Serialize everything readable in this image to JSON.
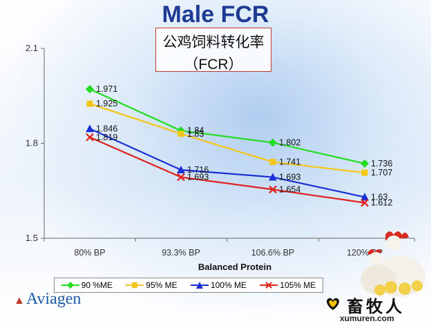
{
  "title": "Male FCR",
  "subtitle_line1": "公鸡饲料转化率",
  "subtitle_line2": "（FCR）",
  "logo_text": "Aviagen",
  "watermark": {
    "cn": "畜牧人",
    "url": "xumuren.com"
  },
  "colors": {
    "title": "#1f3a93"
  },
  "chart_data": {
    "type": "line",
    "title": "Male FCR",
    "xlabel": "Balanced Protein",
    "ylabel": "",
    "categories": [
      "80% BP",
      "93.3% BP",
      "106.6% BP",
      "120% BP"
    ],
    "ylim": [
      1.5,
      2.1
    ],
    "yticks": [
      "1.5",
      "1.8",
      "2.1"
    ],
    "grid": false,
    "legend_position": "bottom",
    "series": [
      {
        "name": "90 %ME",
        "values": [
          1.971,
          1.84,
          1.802,
          1.736
        ],
        "labels": [
          "1.971",
          "1.84",
          "1.802",
          "1.736"
        ],
        "color": "#22dd22",
        "marker": "diamond"
      },
      {
        "name": "95% ME",
        "values": [
          1.925,
          1.83,
          1.741,
          1.707
        ],
        "labels": [
          "1.925",
          "1.83",
          "1.741",
          "1.707"
        ],
        "color": "#f5c518",
        "marker": "square"
      },
      {
        "name": "100% ME",
        "values": [
          1.846,
          1.716,
          1.693,
          1.63
        ],
        "labels": [
          "1.846",
          "1.716",
          "1.693",
          "1.63"
        ],
        "color": "#1a2fd6",
        "marker": "triangle"
      },
      {
        "name": "105% ME",
        "values": [
          1.819,
          1.693,
          1.654,
          1.612
        ],
        "labels": [
          "1.819",
          "1.693",
          "1.654",
          "1.612"
        ],
        "color": "#e0201a",
        "marker": "x"
      }
    ]
  }
}
